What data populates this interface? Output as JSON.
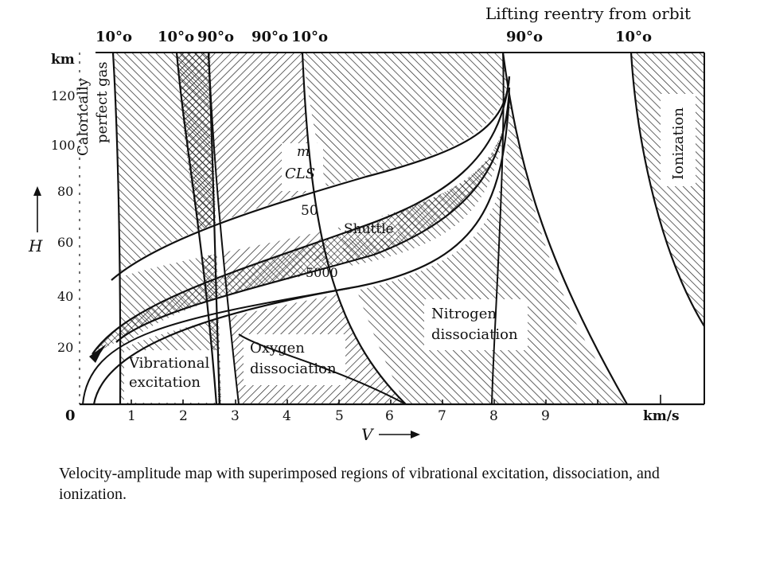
{
  "figure": {
    "title": "Lifting reentry from orbit",
    "top_labels": [
      "10°o",
      "10°o",
      "90°o",
      "90°o",
      "10°o",
      "90°o",
      "10°o"
    ],
    "y_axis": {
      "unit": "km",
      "label": "H",
      "ticks": [
        "120",
        "100",
        "80",
        "60",
        "40",
        "20"
      ]
    },
    "x_axis": {
      "unit": "km/s",
      "label": "V",
      "ticks": [
        "0",
        "1",
        "2",
        "3",
        "4",
        "5",
        "6",
        "7",
        "8",
        "9"
      ]
    },
    "regions": {
      "calorically_perfect_line1": "Calorically",
      "calorically_perfect_line2": "perfect gas",
      "vibrational_line1": "Vibrational",
      "vibrational_line2": "excitation",
      "oxygen_line1": "Oxygen",
      "oxygen_line2": "dissociation",
      "nitrogen_line1": "Nitrogen",
      "nitrogen_line2": "dissociation",
      "ionization": "Ionization"
    },
    "corridor": {
      "param_m": "m",
      "param_cls": "CLS",
      "value_50": "50",
      "value_5000": "5000",
      "shuttle": "Shuttle"
    }
  },
  "caption": "Velocity-amplitude map with superimposed regions of vibrational excitation, dissociation, and ionization."
}
